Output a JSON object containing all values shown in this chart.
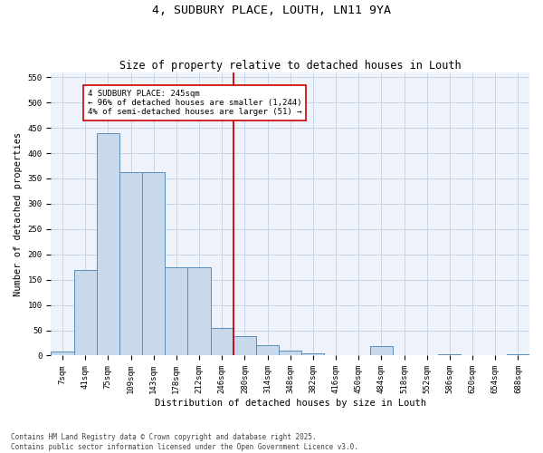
{
  "title": "4, SUDBURY PLACE, LOUTH, LN11 9YA",
  "subtitle": "Size of property relative to detached houses in Louth",
  "xlabel": "Distribution of detached houses by size in Louth",
  "ylabel": "Number of detached properties",
  "bar_labels": [
    "7sqm",
    "41sqm",
    "75sqm",
    "109sqm",
    "143sqm",
    "178sqm",
    "212sqm",
    "246sqm",
    "280sqm",
    "314sqm",
    "348sqm",
    "382sqm",
    "416sqm",
    "450sqm",
    "484sqm",
    "518sqm",
    "552sqm",
    "586sqm",
    "620sqm",
    "654sqm",
    "688sqm"
  ],
  "bar_heights": [
    8,
    170,
    440,
    362,
    362,
    175,
    175,
    55,
    38,
    20,
    10,
    5,
    0,
    0,
    18,
    0,
    0,
    3,
    0,
    0,
    3
  ],
  "bar_color": "#c9d9ec",
  "bar_edge_color": "#5b8db8",
  "vline_x": 7.5,
  "vline_color": "#cc0000",
  "annotation_text": "4 SUDBURY PLACE: 245sqm\n← 96% of detached houses are smaller (1,244)\n4% of semi-detached houses are larger (51) →",
  "annotation_box_color": "#cc0000",
  "ylim": [
    0,
    560
  ],
  "yticks": [
    0,
    50,
    100,
    150,
    200,
    250,
    300,
    350,
    400,
    450,
    500,
    550
  ],
  "grid_color": "#c8d4e8",
  "background_color": "#eef2fa",
  "footer_text": "Contains HM Land Registry data © Crown copyright and database right 2025.\nContains public sector information licensed under the Open Government Licence v3.0.",
  "title_fontsize": 9.5,
  "subtitle_fontsize": 8.5,
  "axis_label_fontsize": 7.5,
  "tick_fontsize": 6.5,
  "annotation_fontsize": 6.5,
  "footer_fontsize": 5.5
}
